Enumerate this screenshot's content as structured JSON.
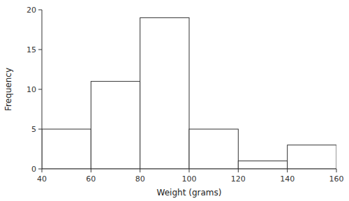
{
  "chart_data": {
    "type": "histogram",
    "bins": [
      40,
      60,
      80,
      100,
      120,
      140,
      160
    ],
    "values": [
      5,
      11,
      19,
      5,
      1,
      3
    ],
    "xlim": [
      40,
      160
    ],
    "ylim": [
      0,
      20
    ],
    "xticks": [
      40,
      60,
      80,
      100,
      120,
      140,
      160
    ],
    "yticks": [
      0,
      5,
      10,
      15,
      20
    ],
    "xlabel": "Weight (grams)",
    "ylabel": "Frequency",
    "color": "white",
    "grid": false
  }
}
